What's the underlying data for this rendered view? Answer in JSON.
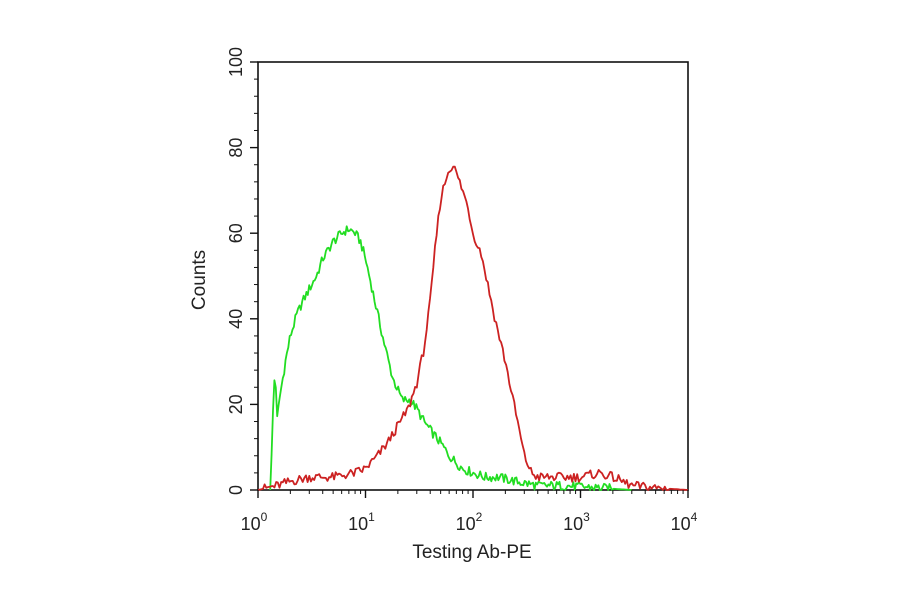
{
  "chart_data": {
    "type": "line",
    "title": "",
    "xlabel": "Testing Ab-PE",
    "ylabel": "Counts",
    "x_scale": "log",
    "xlim": [
      1,
      10000
    ],
    "ylim": [
      0,
      100
    ],
    "x_ticks": [
      {
        "value": 1,
        "base": "10",
        "exp": "0"
      },
      {
        "value": 10,
        "base": "10",
        "exp": "1"
      },
      {
        "value": 100,
        "base": "10",
        "exp": "2"
      },
      {
        "value": 1000,
        "base": "10",
        "exp": "3"
      },
      {
        "value": 10000,
        "base": "10",
        "exp": "4"
      }
    ],
    "y_ticks": [
      "0",
      "20",
      "40",
      "60",
      "80",
      "100"
    ],
    "grid": false,
    "legend": "none",
    "series": [
      {
        "color": "#22dd22",
        "points": [
          [
            1.3,
            0
          ],
          [
            1.35,
            10
          ],
          [
            1.4,
            24
          ],
          [
            1.45,
            28
          ],
          [
            1.5,
            16
          ],
          [
            1.6,
            22
          ],
          [
            1.8,
            30
          ],
          [
            2.0,
            36
          ],
          [
            2.3,
            41
          ],
          [
            2.6,
            44
          ],
          [
            3.0,
            47
          ],
          [
            3.5,
            50
          ],
          [
            4.0,
            54
          ],
          [
            5.0,
            58
          ],
          [
            6.0,
            60
          ],
          [
            7.0,
            61
          ],
          [
            8.0,
            60
          ],
          [
            9.0,
            58
          ],
          [
            10.0,
            54
          ],
          [
            12.0,
            45
          ],
          [
            15.0,
            34
          ],
          [
            18.0,
            26
          ],
          [
            22.0,
            21
          ],
          [
            26.0,
            21
          ],
          [
            30.0,
            19
          ],
          [
            35.0,
            16
          ],
          [
            40.0,
            14
          ],
          [
            50.0,
            11
          ],
          [
            60.0,
            8
          ],
          [
            80.0,
            5
          ],
          [
            100.0,
            4
          ],
          [
            130.0,
            3
          ],
          [
            170.0,
            3
          ],
          [
            250.0,
            2
          ],
          [
            400.0,
            1
          ],
          [
            700.0,
            1
          ],
          [
            1500.0,
            0.5
          ],
          [
            3000.0,
            0
          ]
        ]
      },
      {
        "color": "#cc2222",
        "points": [
          [
            1.0,
            0
          ],
          [
            1.5,
            1
          ],
          [
            2.0,
            2
          ],
          [
            3.0,
            3
          ],
          [
            5.0,
            3
          ],
          [
            8.0,
            4
          ],
          [
            10.0,
            5
          ],
          [
            13.0,
            8
          ],
          [
            16.0,
            11
          ],
          [
            20.0,
            15
          ],
          [
            25.0,
            19
          ],
          [
            30.0,
            25
          ],
          [
            35.0,
            33
          ],
          [
            40.0,
            44
          ],
          [
            45.0,
            58
          ],
          [
            50.0,
            68
          ],
          [
            55.0,
            72
          ],
          [
            60.0,
            75
          ],
          [
            65.0,
            76
          ],
          [
            70.0,
            74
          ],
          [
            80.0,
            70
          ],
          [
            90.0,
            66
          ],
          [
            100.0,
            60
          ],
          [
            120.0,
            55
          ],
          [
            140.0,
            47
          ],
          [
            160.0,
            40
          ],
          [
            200.0,
            30
          ],
          [
            250.0,
            18
          ],
          [
            300.0,
            8
          ],
          [
            350.0,
            4
          ],
          [
            400.0,
            3
          ],
          [
            600.0,
            3
          ],
          [
            1000.0,
            3
          ],
          [
            1500.0,
            4
          ],
          [
            2000.0,
            3
          ],
          [
            3000.0,
            1
          ],
          [
            5000.0,
            0.5
          ],
          [
            10000.0,
            0
          ]
        ]
      }
    ]
  }
}
